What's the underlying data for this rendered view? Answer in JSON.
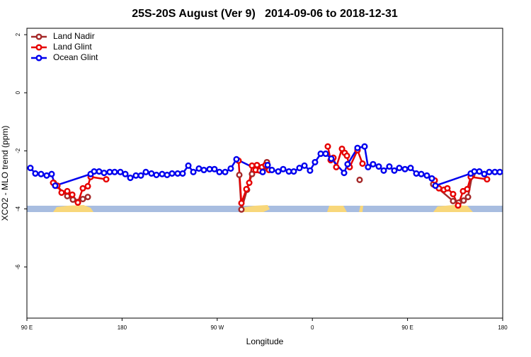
{
  "chart_data": {
    "type": "line",
    "title": "25S-20S August (Ver 9)   2014-09-06 to 2018-12-31",
    "x_label": "Longitude",
    "y_label": "XCO2 - MLO trend (ppm)",
    "xlim": [
      90,
      540
    ],
    "xticks": [
      {
        "value": 90,
        "label": "90 E"
      },
      180,
      {
        "value": 270,
        "label": "90 W"
      },
      {
        "value": 360,
        "label": "0"
      },
      {
        "value": 450,
        "label": "90 E"
      },
      {
        "value": 540,
        "label": "180"
      }
    ],
    "ylim": [
      -7.76,
      2.22
    ],
    "yticks": [
      2,
      0,
      -2,
      -4,
      -6
    ],
    "legend": "top-left",
    "series": [
      {
        "name": "Land Nadir",
        "color": "#a52a2a",
        "x": [
          115.4,
          128.2,
          133.5,
          138.2,
          142.9,
          147.6,
          null,
          290.9,
          292.9,
          298.2,
          302.9,
          307.6,
          313.0,
          317.0,
          null,
          404.7,
          null,
          474.3,
          493.1,
          498.5,
          503.1,
          507.2,
          511.2
        ],
        "values": [
          -3.1,
          -3.56,
          -3.68,
          -3.76,
          -3.66,
          -3.59,
          null,
          -2.83,
          -4.02,
          -3.34,
          -2.8,
          -2.66,
          -2.66,
          -2.39,
          null,
          -3.0,
          null,
          -3.15,
          -3.73,
          -3.78,
          -3.71,
          -3.59,
          -2.83
        ]
      },
      {
        "name": "Land Glint",
        "color": "#e60000",
        "x": [
          114.8,
          118.8,
          122.8,
          128.2,
          132.9,
          138.2,
          142.9,
          147.6,
          150.3,
          165.0,
          null,
          290.2,
          292.9,
          297.6,
          300.3,
          302.9,
          306.3,
          307.6,
          310.3,
          312.3,
          315.6,
          319.0,
          null,
          374.6,
          377.3,
          379.9,
          382.6,
          388.0,
          390.6,
          392.7,
          395.3,
          402.7,
          407.4,
          null,
          475.7,
          479.7,
          484.4,
          487.7,
          493.1,
          497.8,
          502.5,
          506.5,
          509.8,
          525.2
        ],
        "values": [
          -3.1,
          -3.2,
          -3.44,
          -3.39,
          -3.51,
          -3.78,
          -3.29,
          -3.22,
          -2.9,
          -2.98,
          null,
          -2.34,
          -3.8,
          -3.32,
          -3.1,
          -2.51,
          -2.66,
          -2.49,
          -2.68,
          -2.56,
          -2.49,
          -2.66,
          null,
          -1.85,
          -2.32,
          -2.24,
          -2.56,
          -1.93,
          -2.07,
          -2.17,
          -2.56,
          -1.98,
          -2.44,
          null,
          -3.02,
          -3.29,
          -3.34,
          -3.29,
          -3.49,
          -3.88,
          -3.39,
          -3.32,
          -2.9,
          -2.98
        ]
      },
      {
        "name": "Ocean Glint",
        "color": "#0000ee",
        "x": [
          93.3,
          98.0,
          103.4,
          108.7,
          113.4,
          116.8,
          150.3,
          153.6,
          158.3,
          163.0,
          168.3,
          173.0,
          178.4,
          183.1,
          187.8,
          193.1,
          197.8,
          202.5,
          207.8,
          212.5,
          217.9,
          222.6,
          227.3,
          232.6,
          237.3,
          242.7,
          247.4,
          252.7,
          257.4,
          262.8,
          267.4,
          272.1,
          277.5,
          282.8,
          288.2,
          313.0,
          317.7,
          321.7,
          327.7,
          332.4,
          337.8,
          342.4,
          347.8,
          352.5,
          357.8,
          362.5,
          367.9,
          372.6,
          377.9,
          390.0,
          393.3,
          402.7,
          409.4,
          412.7,
          417.4,
          422.8,
          427.5,
          432.8,
          437.5,
          442.2,
          447.6,
          452.9,
          458.3,
          463.0,
          468.3,
          473.0,
          476.4,
          509.8,
          513.2,
          517.9,
          522.6,
          527.3,
          532.6,
          537.3
        ],
        "values": [
          -2.59,
          -2.78,
          -2.8,
          -2.85,
          -2.8,
          -3.2,
          -2.8,
          -2.71,
          -2.71,
          -2.76,
          -2.73,
          -2.73,
          -2.73,
          -2.8,
          -2.93,
          -2.85,
          -2.85,
          -2.73,
          -2.78,
          -2.83,
          -2.8,
          -2.83,
          -2.78,
          -2.78,
          -2.78,
          -2.51,
          -2.73,
          -2.61,
          -2.66,
          -2.63,
          -2.63,
          -2.73,
          -2.73,
          -2.61,
          -2.29,
          -2.73,
          -2.49,
          -2.66,
          -2.71,
          -2.63,
          -2.71,
          -2.71,
          -2.59,
          -2.51,
          -2.68,
          -2.39,
          -2.1,
          -2.1,
          -2.27,
          -2.76,
          -2.46,
          -1.9,
          -1.85,
          -2.56,
          -2.46,
          -2.54,
          -2.68,
          -2.54,
          -2.68,
          -2.59,
          -2.63,
          -2.59,
          -2.78,
          -2.8,
          -2.85,
          -2.95,
          -3.2,
          -2.78,
          -2.71,
          -2.71,
          -2.8,
          -2.73,
          -2.73,
          -2.73
        ]
      }
    ]
  }
}
